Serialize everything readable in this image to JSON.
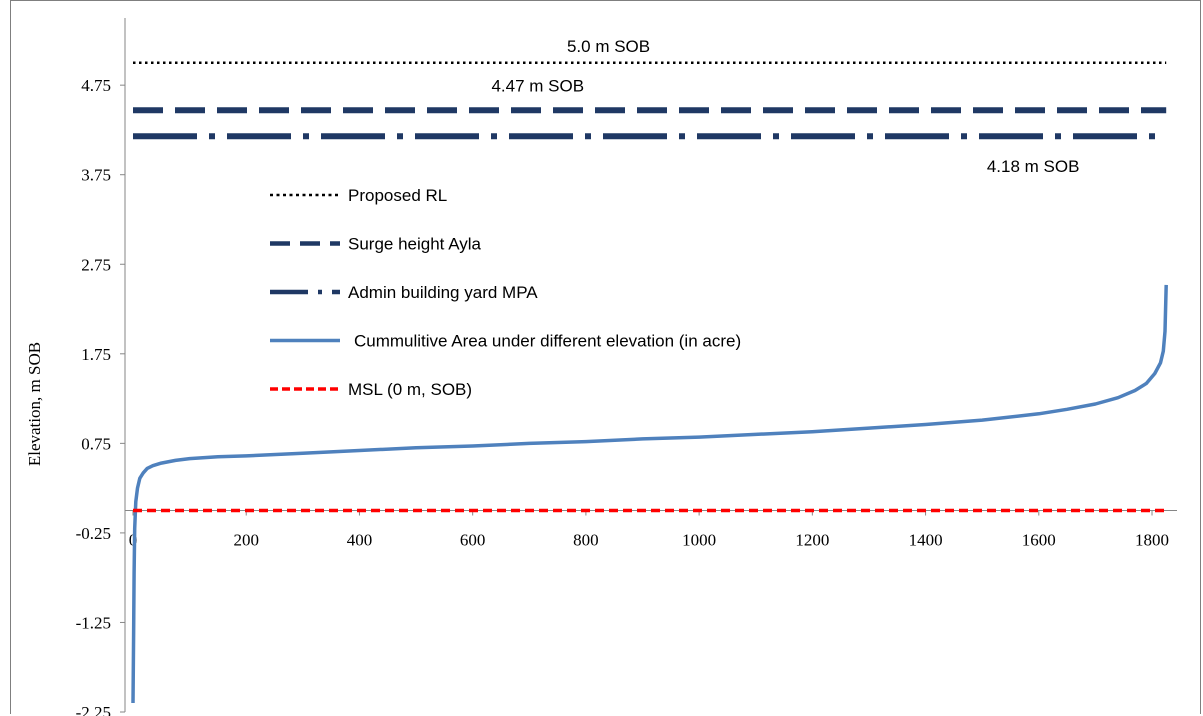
{
  "chart_data": {
    "type": "line",
    "ylabel": "Elevation, m SOB",
    "xlabel": "",
    "xlim": [
      0,
      1830
    ],
    "ylim": [
      -2.25,
      5.5
    ],
    "x_ticks": [
      0,
      200,
      400,
      600,
      800,
      1000,
      1200,
      1400,
      1600,
      1800
    ],
    "y_ticks": [
      4.75,
      3.75,
      2.75,
      1.75,
      0.75,
      -0.25,
      -1.25,
      -2.25
    ],
    "x_tick_labels": [
      "0",
      "200",
      "400",
      "600",
      "800",
      "1000",
      "1200",
      "1400",
      "1600",
      "1800"
    ],
    "y_tick_labels": [
      "4.75",
      "3.75",
      "2.75",
      "1.75",
      "0.75",
      "-0.25",
      "-1.25",
      "-2.25"
    ],
    "x_axis_at_y": 0,
    "grid": false,
    "legend_position": "center-left",
    "series": [
      {
        "name": "Proposed RL",
        "style": "dotted",
        "color": "#000000",
        "x": [
          0,
          1825
        ],
        "y": [
          5.0,
          5.0
        ]
      },
      {
        "name": "Surge height Ayla",
        "style": "dashed",
        "color": "#1f3864",
        "x": [
          0,
          1825
        ],
        "y": [
          4.47,
          4.47
        ]
      },
      {
        "name": "Admin building yard MPA",
        "style": "dash-dot",
        "color": "#1f3864",
        "x": [
          0,
          1825
        ],
        "y": [
          4.18,
          4.18
        ]
      },
      {
        "name": "Cummulitive Area under different elevation (in acre)",
        "style": "solid",
        "color": "#4f81bd",
        "x": [
          0,
          1,
          2,
          3,
          5,
          8,
          12,
          18,
          25,
          35,
          50,
          75,
          100,
          150,
          200,
          300,
          400,
          500,
          600,
          700,
          800,
          900,
          1000,
          1100,
          1200,
          1300,
          1400,
          1500,
          1600,
          1650,
          1700,
          1740,
          1770,
          1790,
          1805,
          1815,
          1820,
          1823,
          1825
        ],
        "y": [
          -2.15,
          -1.4,
          -0.7,
          -0.2,
          0.1,
          0.25,
          0.36,
          0.42,
          0.47,
          0.5,
          0.53,
          0.56,
          0.58,
          0.6,
          0.61,
          0.64,
          0.67,
          0.7,
          0.72,
          0.75,
          0.77,
          0.8,
          0.82,
          0.85,
          0.88,
          0.92,
          0.96,
          1.01,
          1.08,
          1.13,
          1.19,
          1.26,
          1.34,
          1.42,
          1.53,
          1.65,
          1.78,
          2.0,
          2.52
        ]
      },
      {
        "name": "MSL (0 m, SOB)",
        "style": "dashed",
        "color": "#ff0000",
        "x": [
          0,
          1825
        ],
        "y": [
          0,
          0
        ]
      }
    ],
    "annotations": [
      {
        "text": "5.0 m SOB",
        "x": 840,
        "y": 5.12
      },
      {
        "text": "4.47 m SOB",
        "x": 715,
        "y": 4.68
      },
      {
        "text": "4.18 m SOB",
        "x": 1590,
        "y": 3.78
      }
    ]
  }
}
